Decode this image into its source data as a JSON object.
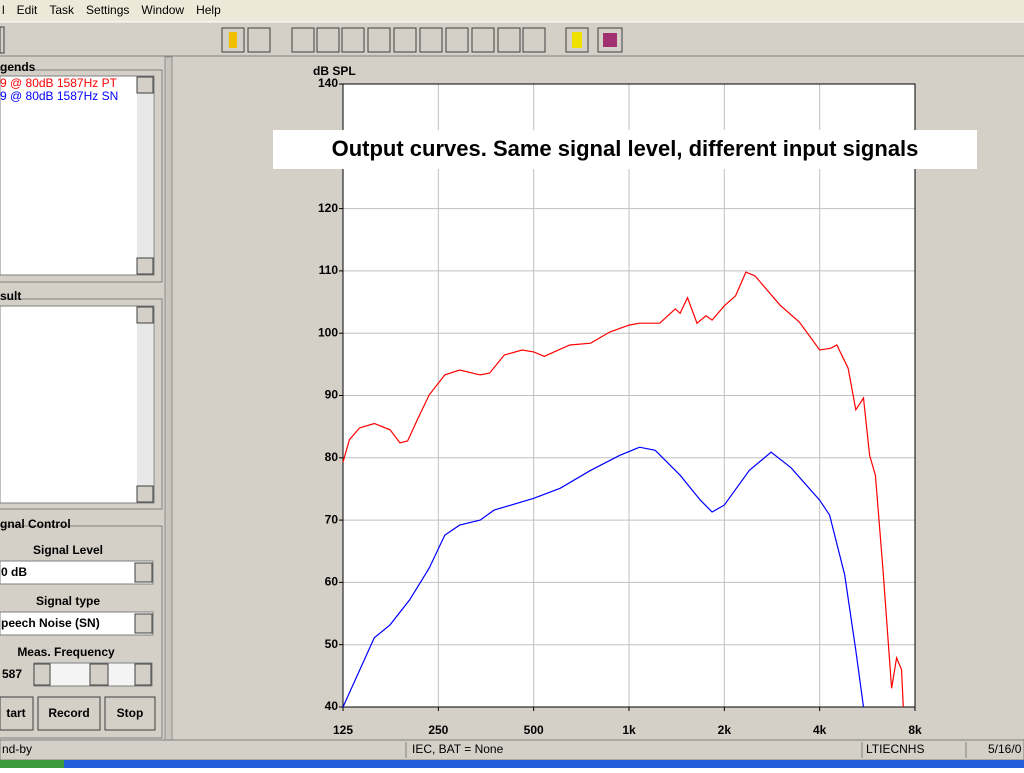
{
  "menu": [
    "l",
    "Edit",
    "Task",
    "Settings",
    "Window",
    "Help"
  ],
  "panels": {
    "legends": {
      "title": "gends"
    },
    "result": {
      "title": "sult"
    },
    "signal_control": {
      "title": "gnal Control",
      "level_label": "Signal Level",
      "level_value": "0 dB",
      "type_label": "Signal type",
      "type_value": "peech Noise (SN)",
      "freq_label": "Meas. Frequency",
      "freq_value": "587"
    },
    "buttons": [
      "tart",
      "Record",
      "Stop"
    ]
  },
  "status_bar": [
    "nd-by",
    "IEC, BAT = None",
    "LTIECNHS",
    "5/16/0"
  ],
  "chart_data": {
    "type": "line",
    "ylabel": "dB SPL",
    "annotation": "Output curves. Same signal level, different input signals",
    "x_scale": "log",
    "xlim": [
      125,
      8000
    ],
    "xticks": [
      125,
      250,
      500,
      {
        "value": 1000,
        "label": "1k"
      },
      {
        "value": 2000,
        "label": "2k"
      },
      {
        "value": 4000,
        "label": "4k"
      },
      {
        "value": 8000,
        "label": "8k"
      }
    ],
    "ylim": [
      40,
      140
    ],
    "yticks": [
      40,
      50,
      60,
      70,
      80,
      90,
      100,
      110,
      120,
      140
    ],
    "grid": true,
    "series": [
      {
        "name": "9 @  80dB  1587Hz PT",
        "color": "#ff0000",
        "x": [
          125,
          131,
          141,
          157,
          176,
          189,
          200,
          216,
          234,
          262,
          292,
          339,
          363,
          404,
          460,
          500,
          540,
          650,
          757,
          870,
          1000,
          1080,
          1250,
          1400,
          1450,
          1530,
          1640,
          1750,
          1830,
          2000,
          2170,
          2340,
          2500,
          3000,
          3450,
          4000,
          4340,
          4530,
          4920,
          5200,
          5500,
          5750,
          6000,
          6340,
          6750,
          7000,
          7250,
          7350
        ],
        "values": [
          79.3,
          82.9,
          84.8,
          85.5,
          84.5,
          82.4,
          82.7,
          86.4,
          90.1,
          93.3,
          94.1,
          93.3,
          93.6,
          96.5,
          97.3,
          97.0,
          96.3,
          98.1,
          98.4,
          100.2,
          101.3,
          101.6,
          101.6,
          103.9,
          103.2,
          105.7,
          101.6,
          102.8,
          102.1,
          104.4,
          106.0,
          109.8,
          109.2,
          104.5,
          101.8,
          97.3,
          97.6,
          98.1,
          94.4,
          87.7,
          89.6,
          80.4,
          77.2,
          62.0,
          43.0,
          47.9,
          46.0,
          40.0
        ]
      },
      {
        "name": "9 @  80dB  1587Hz SN",
        "color": "#0000ff",
        "x": [
          125,
          141,
          157,
          176,
          203,
          234,
          262,
          292,
          339,
          375,
          500,
          606,
          757,
          935,
          1080,
          1210,
          1450,
          1680,
          1830,
          2000,
          2400,
          2810,
          3250,
          4000,
          4300,
          4800,
          5200,
          5500
        ],
        "values": [
          40,
          45.9,
          51.1,
          53.2,
          57.2,
          62.3,
          67.6,
          69.2,
          70.0,
          71.6,
          73.5,
          75.1,
          78.0,
          80.4,
          81.7,
          81.2,
          77.2,
          73.2,
          71.3,
          72.4,
          78.0,
          80.9,
          78.4,
          73.2,
          70.8,
          61.2,
          49.1,
          40.0
        ]
      }
    ]
  }
}
